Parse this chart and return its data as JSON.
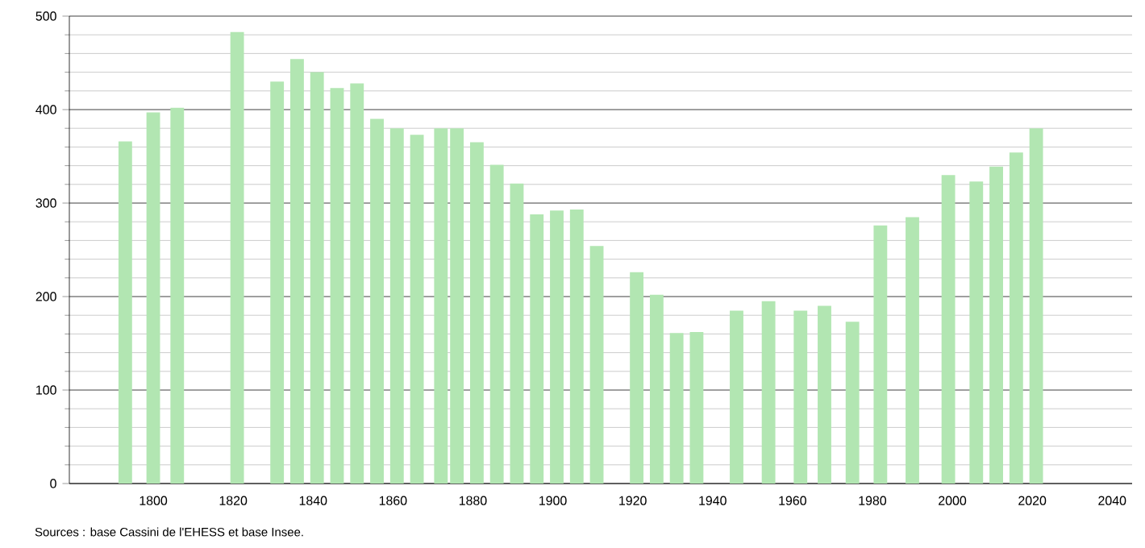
{
  "chart_data": {
    "type": "bar",
    "color": "#b2e6b2",
    "x": [
      1793,
      1800,
      1806,
      1821,
      1831,
      1836,
      1841,
      1846,
      1851,
      1856,
      1861,
      1866,
      1872,
      1876,
      1881,
      1886,
      1891,
      1896,
      1901,
      1906,
      1911,
      1921,
      1926,
      1931,
      1936,
      1946,
      1954,
      1962,
      1968,
      1975,
      1982,
      1990,
      1999,
      2006,
      2011,
      2016,
      2021
    ],
    "values": [
      366,
      397,
      402,
      483,
      430,
      454,
      440,
      423,
      428,
      390,
      380,
      373,
      380,
      380,
      365,
      341,
      321,
      288,
      292,
      293,
      254,
      226,
      202,
      161,
      162,
      185,
      195,
      185,
      190,
      173,
      276,
      285,
      330,
      323,
      339,
      354,
      380
    ],
    "xlim": [
      1779,
      2045
    ],
    "xticks": [
      1800,
      1820,
      1840,
      1860,
      1880,
      1900,
      1920,
      1940,
      1960,
      1980,
      2000,
      2020,
      2040
    ],
    "ylim": [
      0,
      500
    ],
    "yticks": [
      0,
      100,
      200,
      300,
      400,
      500
    ],
    "grid": "y",
    "annotations": [
      "Sources : base Cassini de l'EHESS et base Insee."
    ]
  }
}
